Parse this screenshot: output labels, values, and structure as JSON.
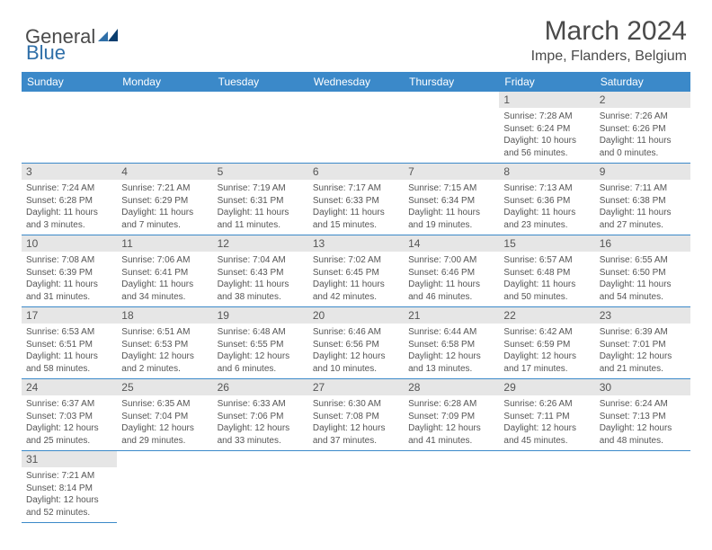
{
  "logo": {
    "text1": "General",
    "text2": "Blue"
  },
  "title": "March 2024",
  "location": "Impe, Flanders, Belgium",
  "colors": {
    "header_bg": "#3b89c9",
    "header_text": "#ffffff",
    "daynum_bg": "#e6e6e6",
    "text": "#555555",
    "logo_grey": "#4a4a4a",
    "logo_blue": "#2f6fa8",
    "border": "#3b89c9"
  },
  "fonts": {
    "title_size_pt": 22,
    "location_size_pt": 12,
    "header_size_pt": 9,
    "daynum_size_pt": 9,
    "body_size_pt": 7.5
  },
  "weekdays": [
    "Sunday",
    "Monday",
    "Tuesday",
    "Wednesday",
    "Thursday",
    "Friday",
    "Saturday"
  ],
  "weeks": [
    [
      null,
      null,
      null,
      null,
      null,
      {
        "n": "1",
        "sr": "7:28 AM",
        "ss": "6:24 PM",
        "dl": "10 hours and 56 minutes."
      },
      {
        "n": "2",
        "sr": "7:26 AM",
        "ss": "6:26 PM",
        "dl": "11 hours and 0 minutes."
      }
    ],
    [
      {
        "n": "3",
        "sr": "7:24 AM",
        "ss": "6:28 PM",
        "dl": "11 hours and 3 minutes."
      },
      {
        "n": "4",
        "sr": "7:21 AM",
        "ss": "6:29 PM",
        "dl": "11 hours and 7 minutes."
      },
      {
        "n": "5",
        "sr": "7:19 AM",
        "ss": "6:31 PM",
        "dl": "11 hours and 11 minutes."
      },
      {
        "n": "6",
        "sr": "7:17 AM",
        "ss": "6:33 PM",
        "dl": "11 hours and 15 minutes."
      },
      {
        "n": "7",
        "sr": "7:15 AM",
        "ss": "6:34 PM",
        "dl": "11 hours and 19 minutes."
      },
      {
        "n": "8",
        "sr": "7:13 AM",
        "ss": "6:36 PM",
        "dl": "11 hours and 23 minutes."
      },
      {
        "n": "9",
        "sr": "7:11 AM",
        "ss": "6:38 PM",
        "dl": "11 hours and 27 minutes."
      }
    ],
    [
      {
        "n": "10",
        "sr": "7:08 AM",
        "ss": "6:39 PM",
        "dl": "11 hours and 31 minutes."
      },
      {
        "n": "11",
        "sr": "7:06 AM",
        "ss": "6:41 PM",
        "dl": "11 hours and 34 minutes."
      },
      {
        "n": "12",
        "sr": "7:04 AM",
        "ss": "6:43 PM",
        "dl": "11 hours and 38 minutes."
      },
      {
        "n": "13",
        "sr": "7:02 AM",
        "ss": "6:45 PM",
        "dl": "11 hours and 42 minutes."
      },
      {
        "n": "14",
        "sr": "7:00 AM",
        "ss": "6:46 PM",
        "dl": "11 hours and 46 minutes."
      },
      {
        "n": "15",
        "sr": "6:57 AM",
        "ss": "6:48 PM",
        "dl": "11 hours and 50 minutes."
      },
      {
        "n": "16",
        "sr": "6:55 AM",
        "ss": "6:50 PM",
        "dl": "11 hours and 54 minutes."
      }
    ],
    [
      {
        "n": "17",
        "sr": "6:53 AM",
        "ss": "6:51 PM",
        "dl": "11 hours and 58 minutes."
      },
      {
        "n": "18",
        "sr": "6:51 AM",
        "ss": "6:53 PM",
        "dl": "12 hours and 2 minutes."
      },
      {
        "n": "19",
        "sr": "6:48 AM",
        "ss": "6:55 PM",
        "dl": "12 hours and 6 minutes."
      },
      {
        "n": "20",
        "sr": "6:46 AM",
        "ss": "6:56 PM",
        "dl": "12 hours and 10 minutes."
      },
      {
        "n": "21",
        "sr": "6:44 AM",
        "ss": "6:58 PM",
        "dl": "12 hours and 13 minutes."
      },
      {
        "n": "22",
        "sr": "6:42 AM",
        "ss": "6:59 PM",
        "dl": "12 hours and 17 minutes."
      },
      {
        "n": "23",
        "sr": "6:39 AM",
        "ss": "7:01 PM",
        "dl": "12 hours and 21 minutes."
      }
    ],
    [
      {
        "n": "24",
        "sr": "6:37 AM",
        "ss": "7:03 PM",
        "dl": "12 hours and 25 minutes."
      },
      {
        "n": "25",
        "sr": "6:35 AM",
        "ss": "7:04 PM",
        "dl": "12 hours and 29 minutes."
      },
      {
        "n": "26",
        "sr": "6:33 AM",
        "ss": "7:06 PM",
        "dl": "12 hours and 33 minutes."
      },
      {
        "n": "27",
        "sr": "6:30 AM",
        "ss": "7:08 PM",
        "dl": "12 hours and 37 minutes."
      },
      {
        "n": "28",
        "sr": "6:28 AM",
        "ss": "7:09 PM",
        "dl": "12 hours and 41 minutes."
      },
      {
        "n": "29",
        "sr": "6:26 AM",
        "ss": "7:11 PM",
        "dl": "12 hours and 45 minutes."
      },
      {
        "n": "30",
        "sr": "6:24 AM",
        "ss": "7:13 PM",
        "dl": "12 hours and 48 minutes."
      }
    ],
    [
      {
        "n": "31",
        "sr": "7:21 AM",
        "ss": "8:14 PM",
        "dl": "12 hours and 52 minutes."
      },
      null,
      null,
      null,
      null,
      null,
      null
    ]
  ],
  "labels": {
    "sunrise": "Sunrise:",
    "sunset": "Sunset:",
    "daylight": "Daylight:"
  }
}
